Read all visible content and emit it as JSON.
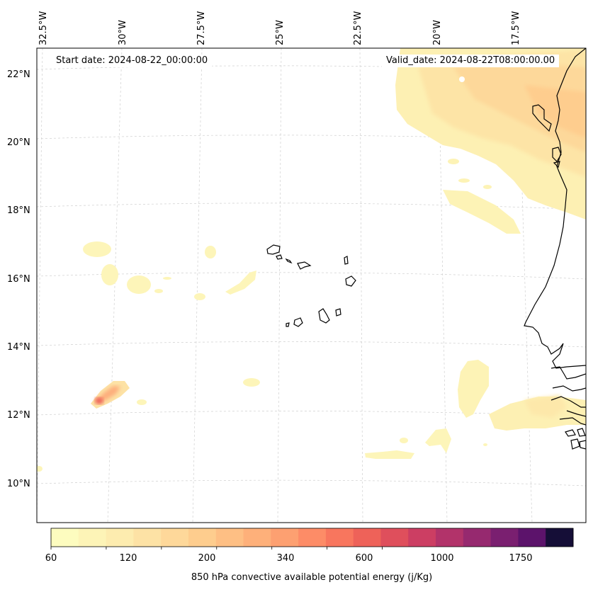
{
  "map": {
    "start_date": "Start date: 2024-08-22_00:00:00",
    "valid_date": "Valid_date: 2024-08-22T08:00:00.00",
    "lon_labels": [
      "32.5°W",
      "30°W",
      "27.5°W",
      "25°W",
      "22.5°W",
      "20°W",
      "17.5°W"
    ],
    "lat_labels": [
      "22°N",
      "20°N",
      "18°N",
      "16°N",
      "14°N",
      "12°N",
      "10°N"
    ]
  },
  "colorbar": {
    "tick_labels": [
      "60",
      "120",
      "200",
      "340",
      "600",
      "1000",
      "1750"
    ],
    "label": "850 hPa convective available potential energy (j/Kg)",
    "colors": [
      "#fdfcbf",
      "#fdf4b7",
      "#fdecaf",
      "#fde2a5",
      "#fed89a",
      "#fecd8e",
      "#febf84",
      "#feb07a",
      "#fda071",
      "#fd8c67",
      "#f8765e",
      "#ee6259",
      "#df4f5c",
      "#cc3e63",
      "#b2336a",
      "#96296f",
      "#7a1f70",
      "#5c136b",
      "#150e37"
    ]
  }
}
